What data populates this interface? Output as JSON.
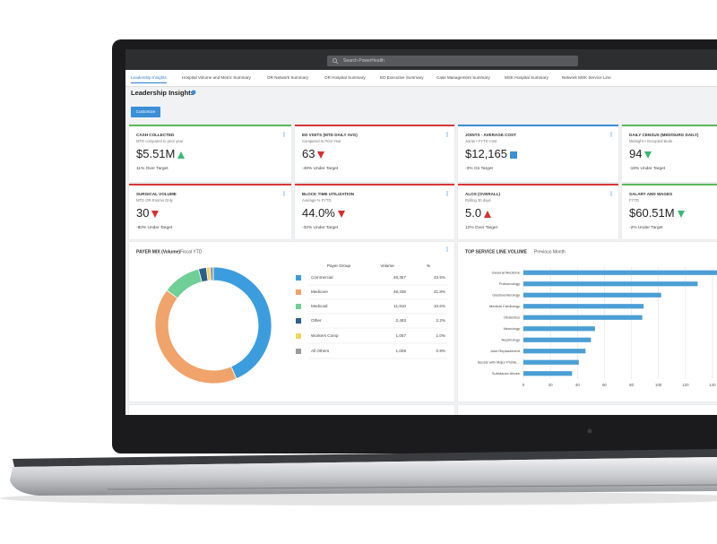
{
  "search_placeholder": "Search PowerHealth",
  "tabs": [
    "Leadership Insights",
    "Hospital Volume and Metric Summary",
    "OR Network Summary",
    "OR Hospital Summary",
    "ED Executive Summary",
    "Case Management Summary",
    "MSK Hospital Summary",
    "Network MSK Service Line"
  ],
  "active_tab": 0,
  "page_title": "Leadership Insights",
  "button": "Customize",
  "kpis": [
    {
      "title": "CASH COLLECTED",
      "subtitle": "MTD compared to prior year",
      "value": "$5.51M",
      "trend": "up",
      "trend_color": "#3cb878",
      "target": "11% Over Target",
      "accent": "#5cb85c"
    },
    {
      "title": "ED VISITS (MTD DAILY AVG)",
      "subtitle": "Compared to Prior Year",
      "value": "63",
      "trend": "down",
      "trend_color": "#d62f2f",
      "target": "-48% Under Target",
      "accent": "#d9383a"
    },
    {
      "title": "JOINTS - AVERAGE COST",
      "subtitle": "Joints • FYTD Cost",
      "value": "$12,165",
      "trend": "flat",
      "trend_color": "#3a8fd6",
      "target": "-3% On Target",
      "accent": "#3a8fd6"
    },
    {
      "title": "DAILY CENSUS (MED/SURG DAILY)",
      "subtitle": "Midnight • Occupied Beds",
      "value": "94",
      "trend": "down",
      "trend_color": "#3cb878",
      "target": "-18% Under Target",
      "accent": "#5cb85c"
    },
    {
      "title": "SURGICAL VOLUME",
      "subtitle": "MTD OR Rooms Only",
      "value": "30",
      "trend": "down",
      "trend_color": "#d62f2f",
      "target": "-80% Under Target",
      "accent": "#d9383a"
    },
    {
      "title": "BLOCK TIME UTILIZATION",
      "subtitle": "Average % FYTD",
      "value": "44.0%",
      "trend": "down",
      "trend_color": "#d62f2f",
      "target": "-32% Under Target",
      "accent": "#d9383a"
    },
    {
      "title": "ALOS (OVERALL)",
      "subtitle": "Rolling 30 days",
      "value": "5.0",
      "trend": "up",
      "trend_color": "#d62f2f",
      "target": "12% Over Target",
      "accent": "#d9383a"
    },
    {
      "title": "SALARY AND WAGES",
      "subtitle": "FYTD",
      "value": "$60.51M",
      "trend": "down",
      "trend_color": "#3cb878",
      "target": "-2% Under Target",
      "accent": "#5cb85c"
    }
  ],
  "chart_data": [
    {
      "type": "pie",
      "title": "PAYER MIX (Volume)",
      "subtitle": "Fiscal YTD",
      "columns": [
        "Payer Group",
        "Volume",
        "%"
      ],
      "categories": [
        "Commercial",
        "Medicare",
        "Medicaid",
        "Other",
        "Workers Comp",
        "All Others"
      ],
      "volumes": [
        {
          "value": 48357,
          "label": "48,357"
        },
        {
          "value": 46438,
          "label": "46,438"
        },
        {
          "value": 11810,
          "label": "11,810"
        },
        {
          "value": 2483,
          "label": "2,483"
        },
        {
          "value": 1057,
          "label": "1,057"
        },
        {
          "value": 1008,
          "label": "1,008"
        }
      ],
      "values": [
        43.5,
        41.8,
        10.6,
        2.2,
        1.0,
        0.9
      ],
      "value_labels": [
        "43.5%",
        "41.8%",
        "10.6%",
        "2.2%",
        "1.0%",
        "0.9%"
      ],
      "colors": [
        "#3b9ddd",
        "#f0a36a",
        "#6fcf97",
        "#2c5f8a",
        "#f4d35e",
        "#9a9a9a"
      ]
    },
    {
      "type": "bar",
      "orientation": "horizontal",
      "title": "TOP SERVICE LINE VOLUME",
      "subtitle": "Previous Month",
      "categories": [
        "General Medicine",
        "Pulmonology",
        "Gastroenterology",
        "Medical Cardiology",
        "Obstetrics",
        "Neurology",
        "Nephrology",
        "Joint Replacement",
        "Sepsis with Major Proble...",
        "Substance Abuse"
      ],
      "values": [
        145,
        129,
        102,
        89,
        88,
        53,
        50,
        46,
        41,
        36
      ],
      "color": "#4a9fd4",
      "xlim": [
        0,
        140
      ],
      "xticks": [
        0,
        20,
        40,
        60,
        80,
        100,
        120,
        140
      ],
      "grid": true
    }
  ]
}
